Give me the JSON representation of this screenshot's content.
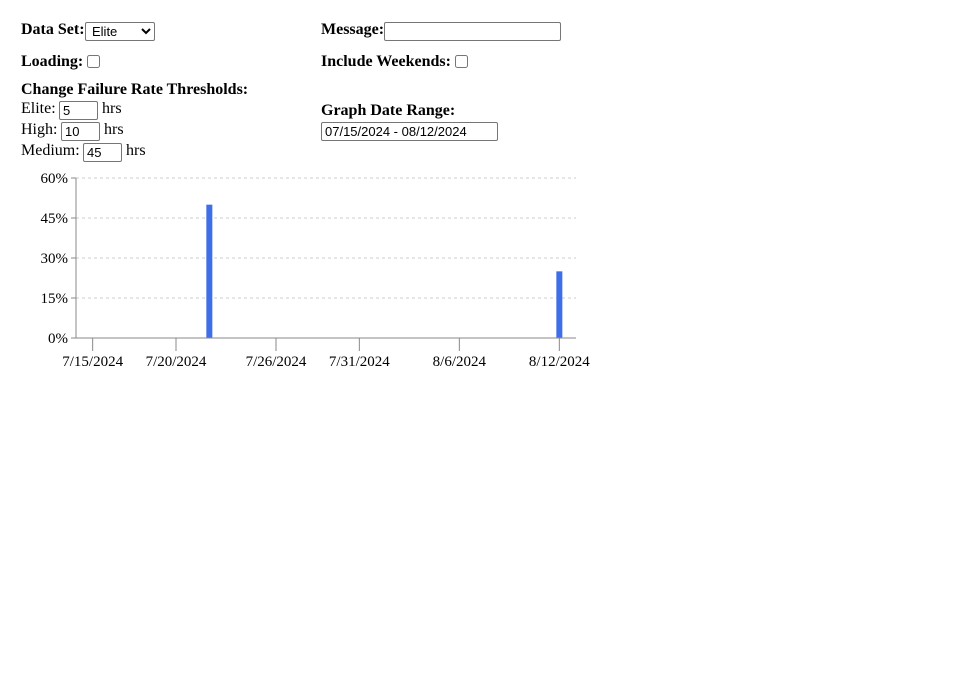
{
  "controls": {
    "data_set_label": "Data Set:",
    "data_set_value": "Elite",
    "data_set_options": [
      "Elite"
    ],
    "message_label": "Message:",
    "message_value": "",
    "loading_label": "Loading:",
    "loading_checked": false,
    "include_weekends_label": "Include Weekends:",
    "include_weekends_checked": false,
    "thresholds_heading": "Change Failure Rate Thresholds:",
    "elite_label": "Elite:",
    "elite_value": "5",
    "high_label": "High:",
    "high_value": "10",
    "medium_label": "Medium:",
    "medium_value": "45",
    "unit": "hrs",
    "graph_range_label": "Graph Date Range:",
    "graph_range_value": "07/15/2024 - 08/12/2024"
  },
  "colors": {
    "bar": "#3f6fe8",
    "grid": "#cccccc",
    "axis": "#888888"
  },
  "chart_data": {
    "type": "bar",
    "x_axis": "date",
    "x_range": [
      "2024-07-14",
      "2024-08-13"
    ],
    "x_tick_labels": [
      "7/15/2024",
      "7/20/2024",
      "7/26/2024",
      "7/31/2024",
      "8/6/2024",
      "8/12/2024"
    ],
    "y_tick_labels": [
      "0%",
      "15%",
      "30%",
      "45%",
      "60%"
    ],
    "ylim": [
      0,
      60
    ],
    "y_unit": "%",
    "grid": "horizontal dashed",
    "bars": [
      {
        "date": "2024-07-22",
        "value": 50
      },
      {
        "date": "2024-08-12",
        "value": 25
      }
    ]
  }
}
